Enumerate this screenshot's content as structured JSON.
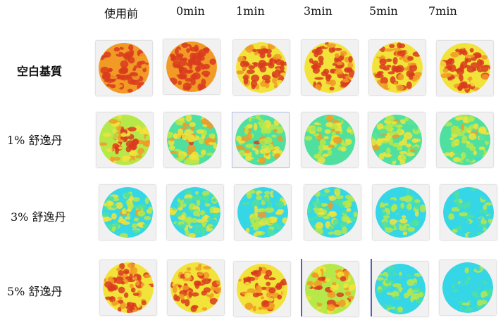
{
  "columns": [
    "使用前",
    "0min",
    "1min",
    "3min",
    "5min",
    "7min"
  ],
  "rows": [
    {
      "label": "空白基質",
      "levels": [
        0.88,
        0.92,
        0.84,
        0.83,
        0.8,
        0.77
      ]
    },
    {
      "label": "1% 舒逸丹",
      "levels": [
        0.62,
        0.55,
        0.52,
        0.48,
        0.47,
        0.45
      ]
    },
    {
      "label": "3% 舒逸丹",
      "levels": [
        0.42,
        0.4,
        0.4,
        0.38,
        0.34,
        0.22
      ]
    },
    {
      "label": "5% 舒逸丹",
      "levels": [
        0.8,
        0.76,
        0.73,
        0.63,
        0.3,
        0.2
      ]
    }
  ],
  "colors": {
    "cold": "#35d6e6",
    "cool": "#4fe0a0",
    "neutral": "#b7e84a",
    "warm": "#f2e33a",
    "hot": "#f19a26",
    "very_hot": "#d93b1e",
    "tile_background": "#f1f1f1"
  }
}
